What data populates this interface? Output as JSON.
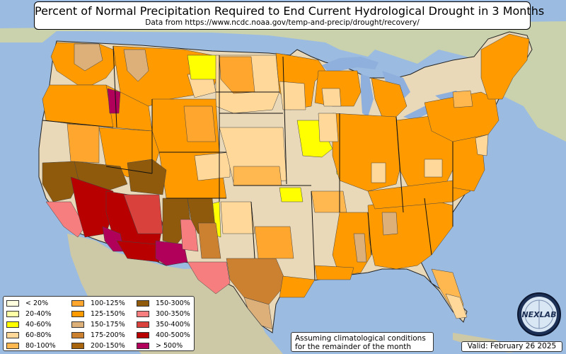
{
  "title": "Percent of Normal Precipitation Required to End Current Hydrological Drought in 3 Months",
  "subtitle": "Data from https://www.ncdc.noaa.gov/temp-and-precip/drought/recovery/",
  "legend": [
    {
      "label": "< 20%",
      "color": "#ffffe0"
    },
    {
      "label": "20-40%",
      "color": "#ffffa6"
    },
    {
      "label": "40-60%",
      "color": "#ffff00"
    },
    {
      "label": "60-80%",
      "color": "#ffd89a"
    },
    {
      "label": "80-100%",
      "color": "#ffb84f"
    },
    {
      "label": "100-125%",
      "color": "#ffa62e"
    },
    {
      "label": "125-150%",
      "color": "#ff9a00"
    },
    {
      "label": "150-175%",
      "color": "#ddb07a"
    },
    {
      "label": "175-200%",
      "color": "#cc8130"
    },
    {
      "label": "200-150%",
      "color": "#a8650d"
    },
    {
      "label": "150-300%",
      "color": "#8f5a0b"
    },
    {
      "label": "300-350%",
      "color": "#f77e7e"
    },
    {
      "label": "350-400%",
      "color": "#d9413c"
    },
    {
      "label": "400-500%",
      "color": "#b80000"
    },
    {
      "label": "> 500%",
      "color": "#b0005a"
    }
  ],
  "note_line1": "Assuming climatological conditions",
  "note_line2": "for the remainder of the month",
  "valid": "Valid: February 26 2025",
  "logo_text": "NEXLAB",
  "colors": {
    "ocean": "#9cbbe0",
    "land_outside": "#c9cfb0",
    "land_conus": "#ead9b8",
    "lakes": "#8fb0dc"
  }
}
